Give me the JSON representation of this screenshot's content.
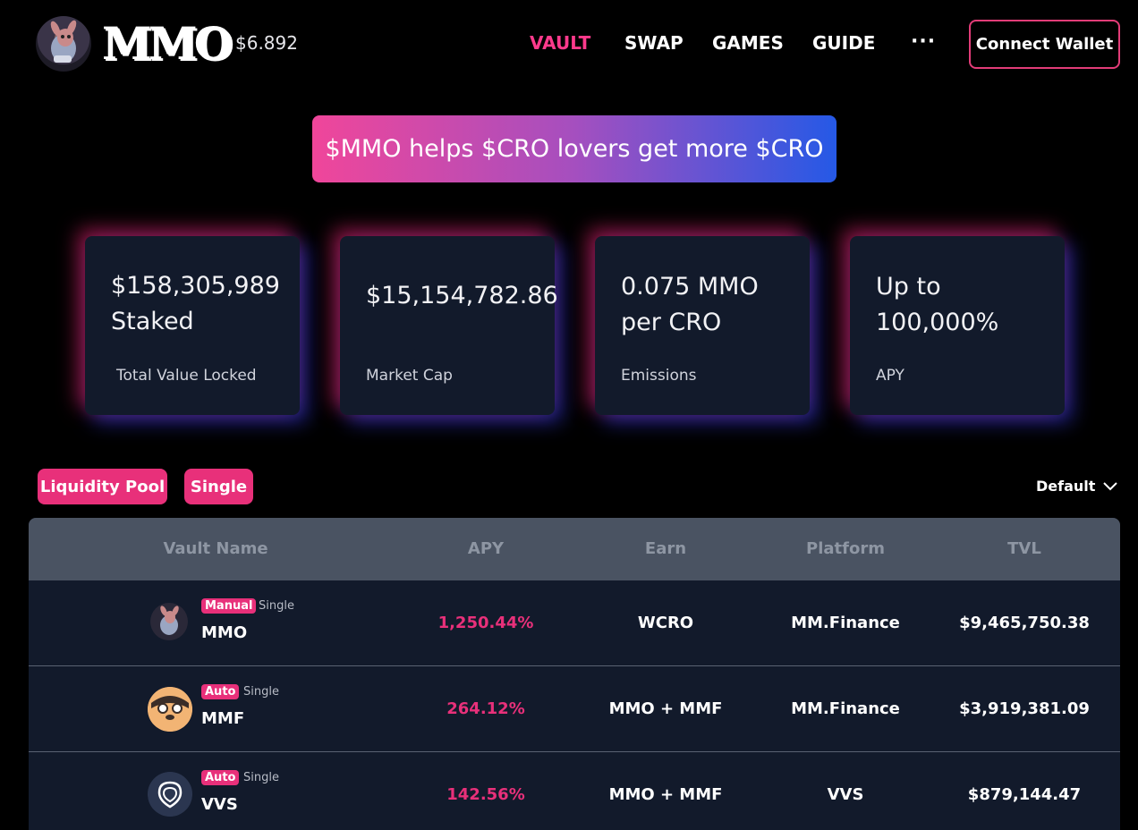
{
  "header": {
    "logo_text": "MMO",
    "price": "$6.892",
    "nav": [
      {
        "label": "VAULT",
        "active": true
      },
      {
        "label": "SWAP",
        "active": false
      },
      {
        "label": "GAMES",
        "active": false
      },
      {
        "label": "GUIDE",
        "active": false
      }
    ],
    "more_label": "···",
    "connect_label": "Connect Wallet"
  },
  "banner": {
    "text": "$MMO helps $CRO lovers get more $CRO"
  },
  "stats": [
    {
      "line1": "$158,305,989",
      "line2": "Staked",
      "label": "Total Value Locked"
    },
    {
      "line1": "$15,154,782.86",
      "line2": "",
      "label": "Market Cap"
    },
    {
      "line1": "0.075 MMO",
      "line2": "per CRO",
      "label": "Emissions"
    },
    {
      "line1": "Up to",
      "line2": "100,000%",
      "label": "APY"
    }
  ],
  "filters": {
    "liquidity_pool": "Liquidity Pool",
    "single": "Single",
    "sort": "Default"
  },
  "table": {
    "headers": {
      "name": "Vault Name",
      "apy": "APY",
      "earn": "Earn",
      "platform": "Platform",
      "tvl": "TVL"
    },
    "rows": [
      {
        "badge": "Manual",
        "kind": "Single",
        "name": "MMO",
        "apy": "1,250.44%",
        "earn": "WCRO",
        "platform": "MM.Finance",
        "tvl": "$9,465,750.38",
        "icon": "mmo-token-icon"
      },
      {
        "badge": "Auto",
        "kind": "Single",
        "name": "MMF",
        "apy": "264.12%",
        "earn": "MMO + MMF",
        "platform": "MM.Finance",
        "tvl": "$3,919,381.09",
        "icon": "mmf-token-icon"
      },
      {
        "badge": "Auto",
        "kind": "Single",
        "name": "VVS",
        "apy": "142.56%",
        "earn": "MMO + MMF",
        "platform": "VVS",
        "tvl": "$879,144.47",
        "icon": "vvs-token-icon"
      }
    ]
  },
  "colors": {
    "accent": "#e8307a",
    "card_bg": "#121a2b",
    "table_header_bg": "#4a5362",
    "banner_gradient_start": "#f0469a",
    "banner_gradient_end": "#2559e6"
  }
}
